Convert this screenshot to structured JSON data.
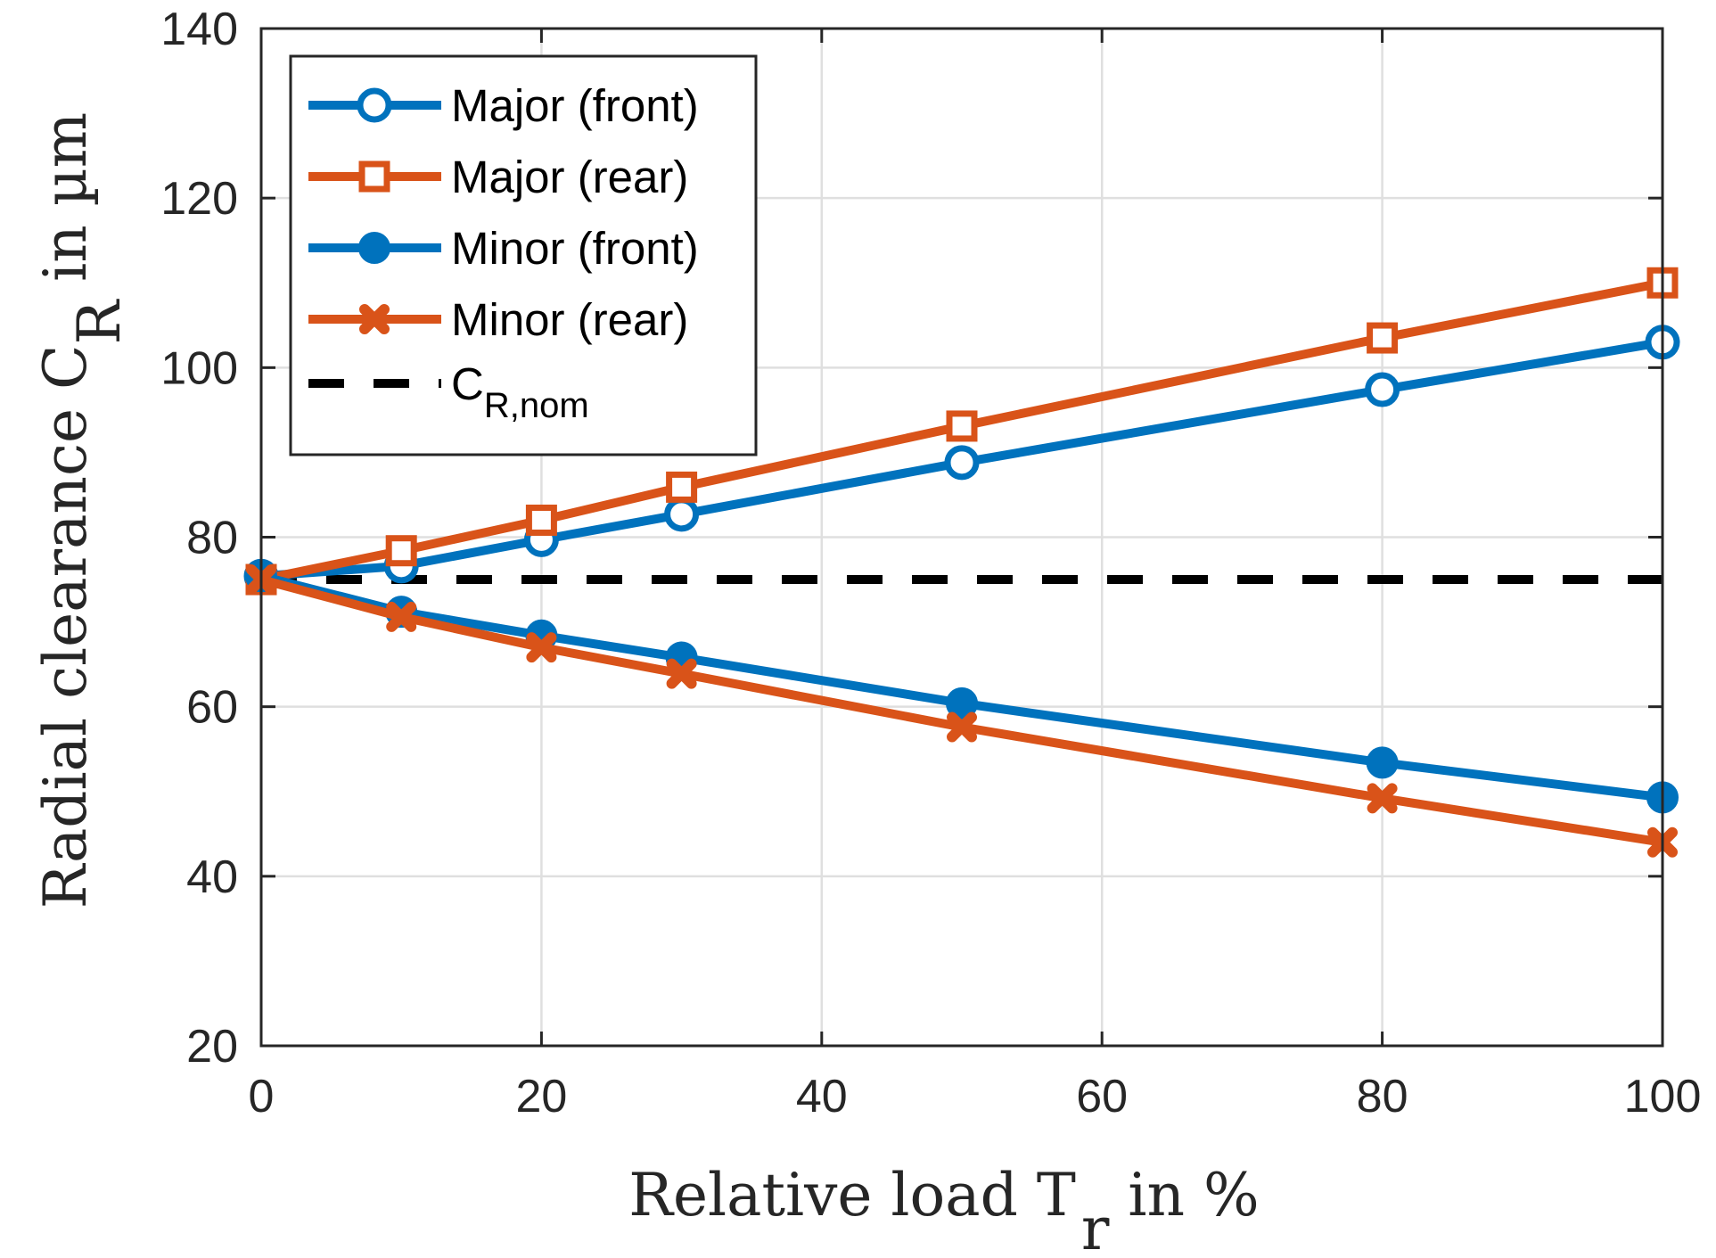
{
  "chart_data": {
    "type": "line",
    "xlabel": {
      "main": "Relative load T",
      "sub": "r",
      "suffix": " in %"
    },
    "ylabel": {
      "main": "Radial clearance C",
      "sub": "R",
      "suffix": " in µm"
    },
    "xlim": [
      0,
      100
    ],
    "ylim": [
      20,
      140
    ],
    "xticks": [
      0,
      20,
      40,
      60,
      80,
      100
    ],
    "yticks": [
      20,
      40,
      60,
      80,
      100,
      120,
      140
    ],
    "grid": true,
    "legend_position": "top-left",
    "series": [
      {
        "name": "Major (front)",
        "color": "#0072BD",
        "marker": "circle-open",
        "x": [
          0,
          10,
          20,
          30,
          50,
          80,
          100
        ],
        "y": [
          75.4,
          76.6,
          79.7,
          82.7,
          88.8,
          97.4,
          103.0
        ]
      },
      {
        "name": "Major (rear)",
        "color": "#D95319",
        "marker": "square-open",
        "x": [
          0,
          10,
          20,
          30,
          50,
          80,
          100
        ],
        "y": [
          75.0,
          78.4,
          82.0,
          85.9,
          93.1,
          103.5,
          110.0
        ]
      },
      {
        "name": "Minor (front)",
        "color": "#0072BD",
        "marker": "circle-filled",
        "x": [
          0,
          10,
          20,
          30,
          50,
          80,
          100
        ],
        "y": [
          75.4,
          71.2,
          68.4,
          65.8,
          60.4,
          53.4,
          49.3
        ]
      },
      {
        "name": "Minor (rear)",
        "color": "#D95319",
        "marker": "x-filled",
        "x": [
          0,
          10,
          20,
          30,
          50,
          80,
          100
        ],
        "y": [
          75.0,
          70.6,
          67.0,
          63.9,
          57.6,
          49.2,
          44.0
        ]
      }
    ],
    "reference_line": {
      "label_main": "C",
      "label_sub": "R,nom",
      "y": 75,
      "color": "#000000",
      "style": "dashed"
    }
  }
}
